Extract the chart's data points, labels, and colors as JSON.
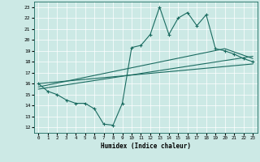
{
  "xlabel": "Humidex (Indice chaleur)",
  "bg_color": "#cce9e5",
  "line_color": "#1a6b60",
  "xlim": [
    -0.5,
    23.5
  ],
  "ylim": [
    11.5,
    23.5
  ],
  "xticks": [
    0,
    1,
    2,
    3,
    4,
    5,
    6,
    7,
    8,
    9,
    10,
    11,
    12,
    13,
    14,
    15,
    16,
    17,
    18,
    19,
    20,
    21,
    22,
    23
  ],
  "yticks": [
    12,
    13,
    14,
    15,
    16,
    17,
    18,
    19,
    20,
    21,
    22,
    23
  ],
  "line1_x": [
    0,
    1,
    2,
    3,
    4,
    5,
    6,
    7,
    8,
    9,
    10,
    11,
    12,
    13,
    14,
    15,
    16,
    17,
    18,
    19,
    20,
    21,
    22,
    23
  ],
  "line1_y": [
    16.0,
    15.3,
    15.0,
    14.5,
    14.2,
    14.2,
    13.7,
    12.3,
    12.2,
    14.2,
    19.3,
    19.5,
    20.5,
    23.0,
    20.5,
    22.0,
    22.5,
    21.3,
    22.3,
    19.2,
    19.0,
    18.7,
    18.3,
    18.0
  ],
  "line2_x": [
    0,
    23
  ],
  "line2_y": [
    16.0,
    17.8
  ],
  "line3_x": [
    0,
    23
  ],
  "line3_y": [
    15.5,
    18.5
  ],
  "line4_x": [
    0,
    20,
    23
  ],
  "line4_y": [
    15.7,
    19.2,
    18.3
  ]
}
